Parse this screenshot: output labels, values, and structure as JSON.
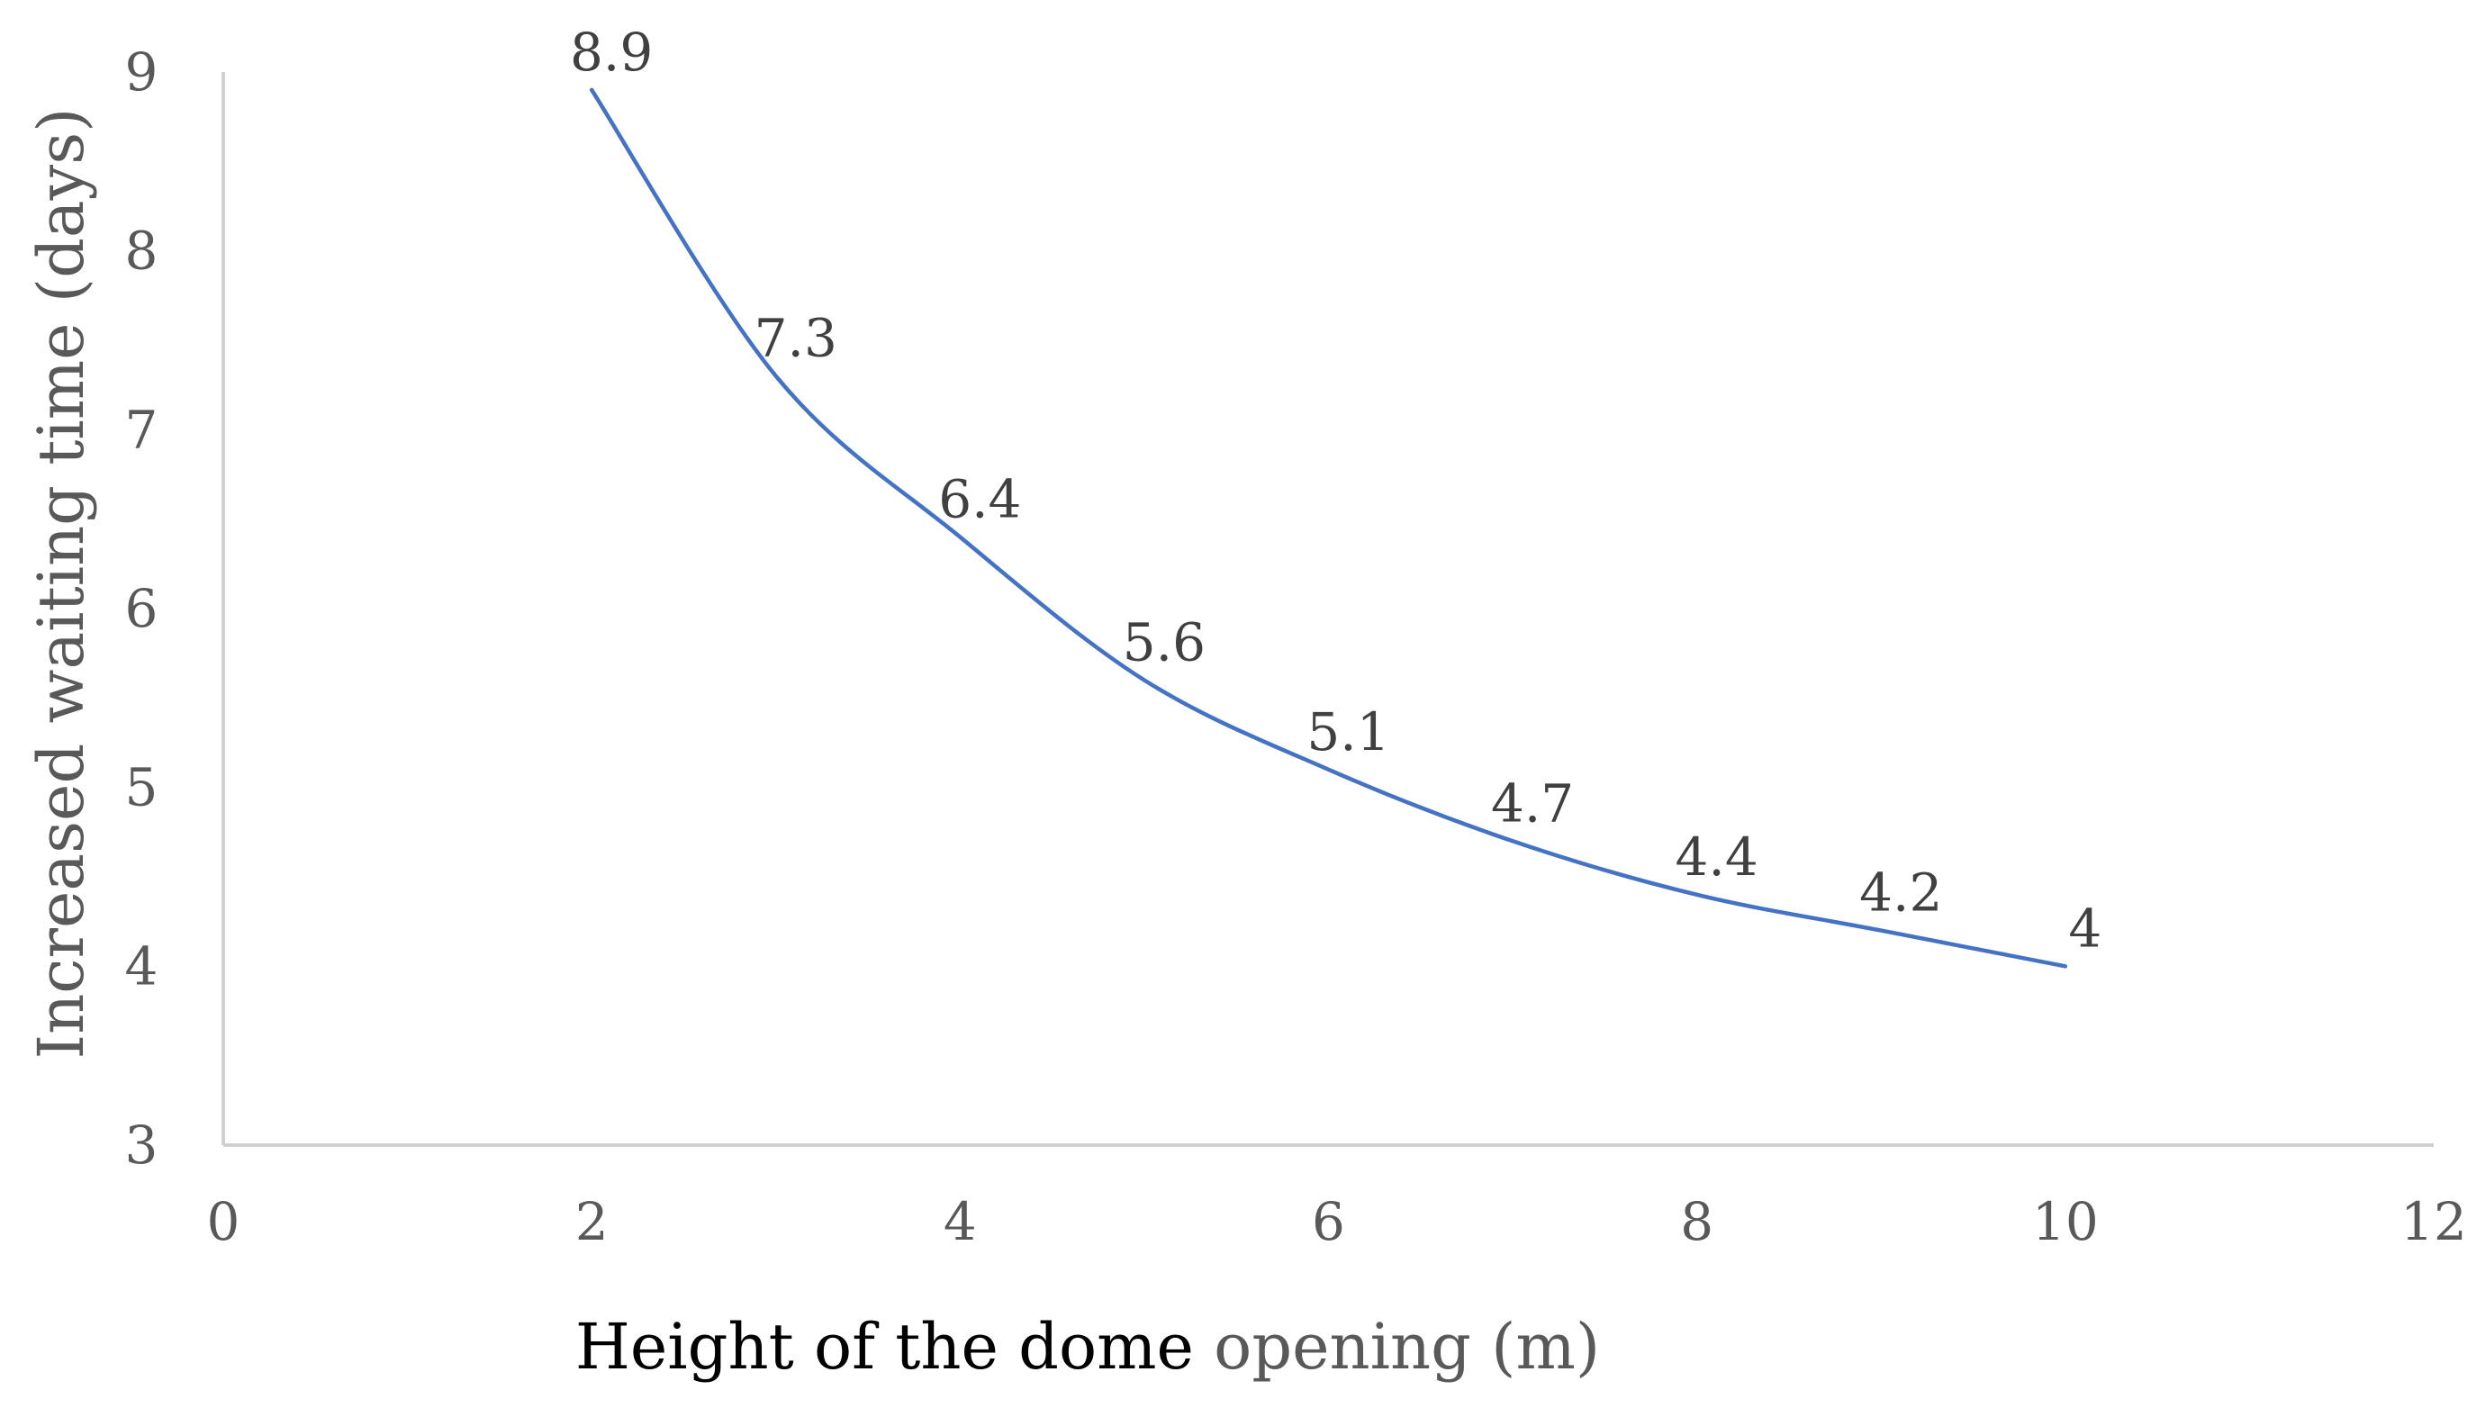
{
  "chart_data": {
    "type": "line",
    "smoothed": true,
    "x": [
      2,
      3,
      4,
      5,
      6,
      7,
      8,
      9,
      10
    ],
    "series": [
      {
        "values": [
          8.9,
          7.3,
          6.4,
          5.6,
          5.1,
          4.7,
          4.4,
          4.2,
          4
        ],
        "color": "#4472c4"
      }
    ],
    "data_labels": [
      "8.9",
      "7.3",
      "6.4",
      "5.6",
      "5.1",
      "4.7",
      "4.4",
      "4.2",
      "4"
    ],
    "xlabel_part1": "Height of the dome",
    "xlabel_part2": "opening (m)",
    "ylabel": "Increased waiting time (days)",
    "xlim": [
      0,
      12
    ],
    "ylim": [
      3,
      9
    ],
    "xticks": [
      "0",
      "2",
      "4",
      "6",
      "8",
      "10",
      "12"
    ],
    "yticks": [
      "3",
      "4",
      "5",
      "6",
      "7",
      "8",
      "9"
    ],
    "grid": false,
    "legend": "none",
    "colors": {
      "xlabel_part1": "#000000",
      "xlabel_part2": "#595959",
      "ylabel": "#595959",
      "axis": "#d0d0d0"
    }
  }
}
